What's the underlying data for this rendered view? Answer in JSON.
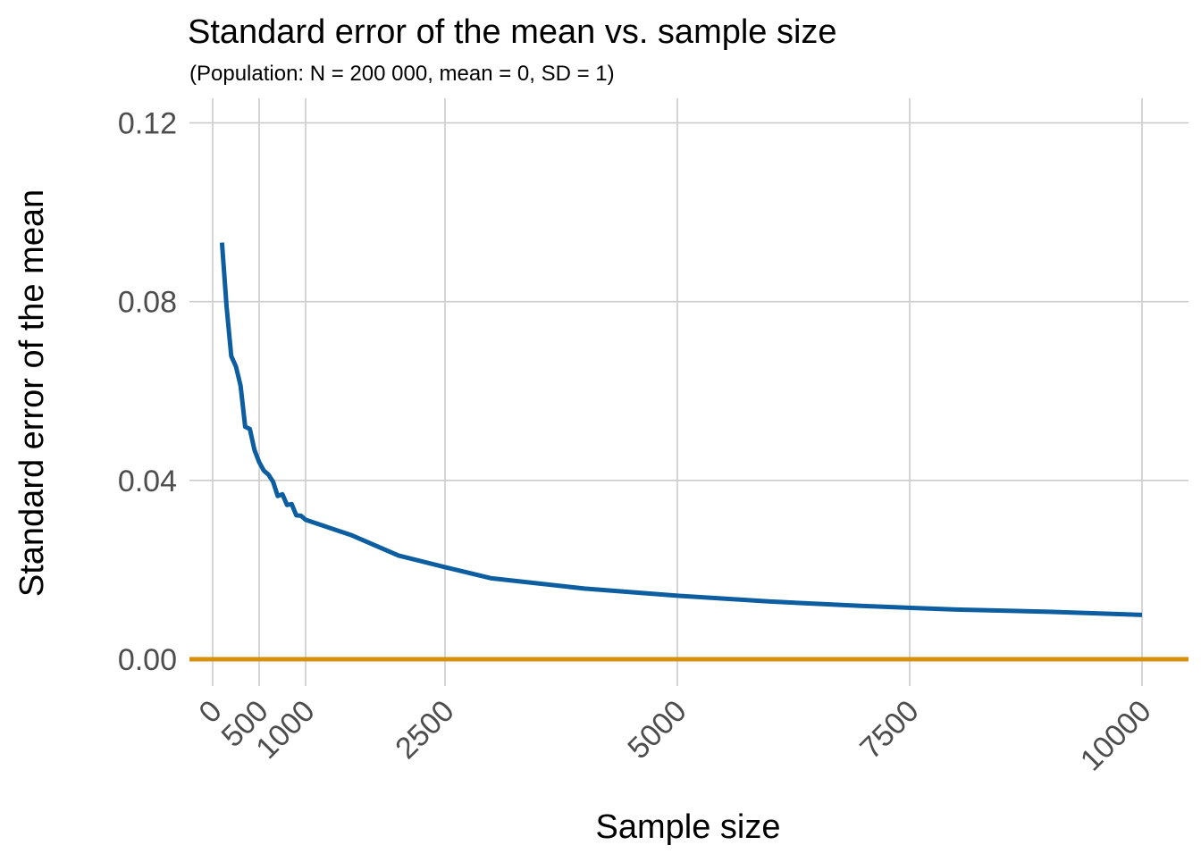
{
  "chart_data": {
    "type": "line",
    "title": "Standard error of the mean vs. sample size",
    "subtitle": "(Population: N = 200 000, mean = 0, SD = 1)",
    "xlabel": "Sample size",
    "ylabel": "Standard error of the mean",
    "xlim": [
      -250,
      10500
    ],
    "ylim": [
      -0.006,
      0.1255
    ],
    "x_ticks": [
      0,
      500,
      1000,
      2500,
      5000,
      7500,
      10000
    ],
    "y_ticks": [
      0.0,
      0.04,
      0.08,
      0.12
    ],
    "y_tick_labels": [
      "0.00",
      "0.04",
      "0.08",
      "0.12"
    ],
    "grid": true,
    "legend": "none",
    "series": [
      {
        "color": "#0c5ea0",
        "x": [
          100,
          150,
          200,
          250,
          300,
          350,
          400,
          450,
          500,
          550,
          600,
          650,
          700,
          750,
          800,
          850,
          900,
          950,
          1000,
          1500,
          2000,
          2500,
          3000,
          4000,
          5000,
          6000,
          7000,
          8000,
          9000,
          10000
        ],
        "y": [
          0.0932,
          0.0788,
          0.0678,
          0.0655,
          0.0612,
          0.052,
          0.0515,
          0.0468,
          0.0441,
          0.0422,
          0.0413,
          0.0397,
          0.0365,
          0.0369,
          0.0345,
          0.0347,
          0.0322,
          0.0321,
          0.0312,
          0.0277,
          0.0232,
          0.0206,
          0.0181,
          0.0158,
          0.0142,
          0.0129,
          0.0119,
          0.0111,
          0.0106,
          0.0099
        ]
      }
    ],
    "reference_line": {
      "y": 0,
      "color": "#d5900e"
    }
  }
}
